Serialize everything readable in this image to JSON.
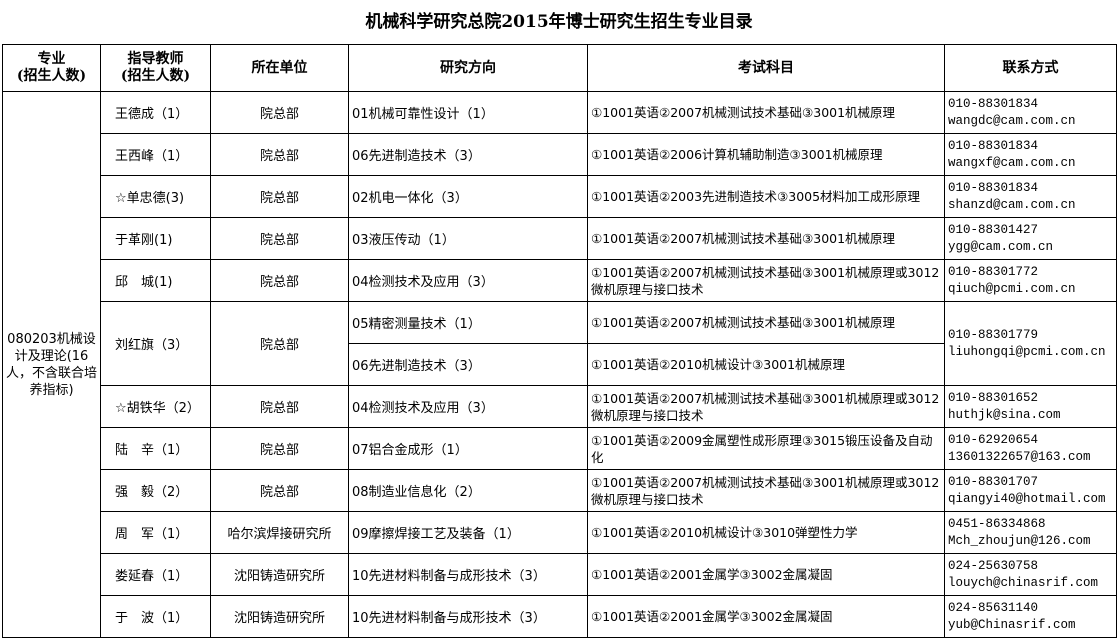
{
  "title": "机械科学研究总院2015年博士研究生招生专业目录",
  "headers": {
    "major": "专业\n(招生人数)",
    "advisor": "指导教师\n(招生人数)",
    "unit": "所在单位",
    "direction": "研究方向",
    "exam": "考试科目",
    "contact": "联系方式"
  },
  "major": "080203机械设计及理论(16人，不含联合培养指标)",
  "rows": [
    {
      "advisor": "王德成（1）",
      "unit": "院总部",
      "directions": [
        "01机械可靠性设计（1）"
      ],
      "exams": [
        "①1001英语②2007机械测试技术基础③3001机械原理"
      ],
      "phone": "010-88301834",
      "email": "wangdc@cam.com.cn"
    },
    {
      "advisor": "王西峰（1）",
      "unit": "院总部",
      "directions": [
        "06先进制造技术（3）"
      ],
      "exams": [
        "①1001英语②2006计算机辅助制造③3001机械原理"
      ],
      "phone": "010-88301834",
      "email": "wangxf@cam.com.cn"
    },
    {
      "advisor": "☆单忠德(3)",
      "unit": "院总部",
      "directions": [
        "02机电一体化（3）"
      ],
      "exams": [
        "①1001英语②2003先进制造技术③3005材料加工成形原理"
      ],
      "phone": "010-88301834",
      "email": "shanzd@cam.com.cn"
    },
    {
      "advisor": "于革刚(1)",
      "unit": "院总部",
      "directions": [
        "03液压传动（1）"
      ],
      "exams": [
        "①1001英语②2007机械测试技术基础③3001机械原理"
      ],
      "phone": "010-88301427",
      "email": "ygg@cam.com.cn"
    },
    {
      "advisor": "邱　城(1)",
      "unit": "院总部",
      "directions": [
        "04检测技术及应用（3）"
      ],
      "exams": [
        "①1001英语②2007机械测试技术基础③3001机械原理或3012微机原理与接口技术"
      ],
      "phone": "010-88301772",
      "email": "qiuch@pcmi.com.cn"
    },
    {
      "advisor": "刘红旗（3）",
      "unit": "院总部",
      "directions": [
        "05精密测量技术（1）",
        "06先进制造技术（3）"
      ],
      "exams": [
        "①1001英语②2007机械测试技术基础③3001机械原理",
        "①1001英语②2010机械设计③3001机械原理"
      ],
      "phone": "010-88301779",
      "email": "liuhongqi@pcmi.com.cn"
    },
    {
      "advisor": "☆胡铁华（2）",
      "unit": "院总部",
      "directions": [
        "04检测技术及应用（3）"
      ],
      "exams": [
        "①1001英语②2007机械测试技术基础③3001机械原理或3012微机原理与接口技术"
      ],
      "phone": "010-88301652",
      "email": "huthjk@sina.com"
    },
    {
      "advisor": "陆　辛（1）",
      "unit": "院总部",
      "directions": [
        "07铝合金成形（1）"
      ],
      "exams": [
        "①1001英语②2009金属塑性成形原理③3015锻压设备及自动化"
      ],
      "phone": "010-62920654",
      "email": "13601322657@163.com"
    },
    {
      "advisor": "强　毅（2）",
      "unit": "院总部",
      "directions": [
        "08制造业信息化（2）"
      ],
      "exams": [
        "①1001英语②2007机械测试技术基础③3001机械原理或3012微机原理与接口技术"
      ],
      "phone": "010-88301707",
      "email": "qiangyi40@hotmail.com"
    },
    {
      "advisor": "周　军（1）",
      "unit": "哈尔滨焊接研究所",
      "directions": [
        "09摩擦焊接工艺及装备（1）"
      ],
      "exams": [
        "①1001英语②2010机械设计③3010弹塑性力学"
      ],
      "phone": "0451-86334868",
      "email": "Mch_zhoujun@126.com"
    },
    {
      "advisor": "娄延春（1）",
      "unit": "沈阳铸造研究所",
      "directions": [
        "10先进材料制备与成形技术（3）"
      ],
      "exams": [
        "①1001英语②2001金属学③3002金属凝固"
      ],
      "phone": "024-25630758",
      "email": "louych@chinasrif.com"
    },
    {
      "advisor": "于　波（1）",
      "unit": "沈阳铸造研究所",
      "directions": [
        "10先进材料制备与成形技术（3）"
      ],
      "exams": [
        "①1001英语②2001金属学③3002金属凝固"
      ],
      "phone": "024-85631140",
      "email": "yub@Chinasrif.com"
    }
  ]
}
